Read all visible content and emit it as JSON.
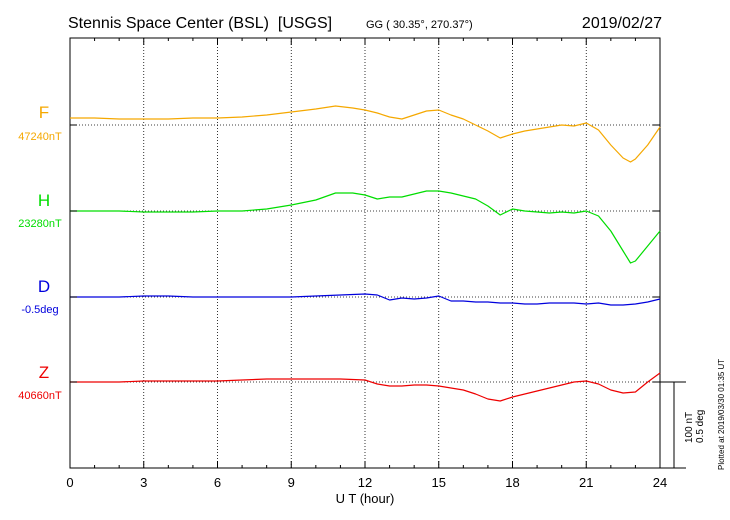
{
  "header": {
    "station": "Stennis Space Center (BSL)  [USGS]",
    "coords": "GG ( 30.35°, 270.37°)",
    "date": "2019/02/27"
  },
  "side_note": "Plotted at 2019/03/30 01:35 UT",
  "scale_bar": {
    "line1": "100 nT",
    "line2": "0.5 deg"
  },
  "chart_data": {
    "type": "line",
    "xlabel": "U T (hour)",
    "xlim": [
      0,
      24
    ],
    "x_ticks": [
      "0",
      "3",
      "6",
      "9",
      "12",
      "15",
      "18",
      "21",
      "24"
    ],
    "grid": true,
    "series": [
      {
        "name": "F",
        "baseline_label": "47240nT",
        "color": "#f5a800",
        "x": [
          0,
          1,
          2,
          3,
          4,
          5,
          6,
          7,
          8,
          9,
          10,
          10.8,
          11.5,
          12,
          12.5,
          13,
          13.5,
          14,
          14.5,
          15,
          15.5,
          16,
          16.5,
          17,
          17.5,
          18,
          18.5,
          19,
          19.5,
          20,
          20.5,
          21,
          21.5,
          22,
          22.5,
          22.8,
          23,
          23.5,
          24
        ],
        "values": [
          7,
          7,
          6,
          6,
          6,
          7,
          7,
          8,
          10,
          13,
          16,
          19,
          17,
          15,
          12,
          8,
          6,
          10,
          14,
          15,
          10,
          6,
          0,
          -6,
          -13,
          -9,
          -6,
          -4,
          -2,
          0,
          -1,
          2,
          -5,
          -20,
          -33,
          -37,
          -34,
          -20,
          -2
        ]
      },
      {
        "name": "H",
        "baseline_label": "23280nT",
        "color": "#00dd00",
        "x": [
          0,
          1,
          2,
          3,
          4,
          5,
          6,
          7,
          8,
          9,
          10,
          10.8,
          11.5,
          12,
          12.5,
          13,
          13.5,
          14,
          14.5,
          15,
          15.5,
          16,
          16.5,
          17,
          17.5,
          18,
          18.5,
          19,
          19.5,
          20,
          20.5,
          21,
          21.5,
          22,
          22.5,
          22.8,
          23,
          23.5,
          24
        ],
        "values": [
          0,
          0,
          0,
          -1,
          -1,
          -1,
          0,
          0,
          2,
          6,
          11,
          18,
          18,
          16,
          12,
          14,
          14,
          17,
          20,
          20,
          18,
          15,
          12,
          5,
          -4,
          2,
          0,
          -1,
          -2,
          -1,
          -2,
          0,
          -5,
          -20,
          -40,
          -52,
          -50,
          -35,
          -20
        ]
      },
      {
        "name": "D",
        "baseline_label": "-0.5deg",
        "color": "#0000dd",
        "x": [
          0,
          1,
          2,
          3,
          4,
          5,
          6,
          7,
          8,
          9,
          10,
          11,
          12,
          12.5,
          13,
          13.5,
          14,
          14.5,
          15,
          15.5,
          16,
          16.5,
          17,
          17.5,
          18,
          18.5,
          19,
          19.5,
          20,
          20.5,
          21,
          21.5,
          22,
          22.5,
          23,
          23.5,
          24
        ],
        "values": [
          0,
          0,
          0,
          1,
          1,
          0,
          0,
          0,
          0,
          0,
          1,
          2,
          3,
          2,
          -3,
          -1,
          -2,
          -1,
          1,
          -4,
          -4,
          -5,
          -5,
          -6,
          -6,
          -7,
          -7,
          -6,
          -6,
          -6,
          -7,
          -6,
          -8,
          -8,
          -7,
          -5,
          -2
        ]
      },
      {
        "name": "Z",
        "baseline_label": "40660nT",
        "color": "#ee0000",
        "x": [
          0,
          1,
          2,
          3,
          4,
          5,
          6,
          7,
          8,
          9,
          10,
          11,
          12,
          12.5,
          13,
          13.5,
          14,
          14.5,
          15,
          15.5,
          16,
          16.5,
          17,
          17.5,
          18,
          18.5,
          19,
          19.5,
          20,
          20.5,
          21,
          21.5,
          22,
          22.5,
          23,
          23.5,
          24
        ],
        "values": [
          0,
          0,
          0,
          1,
          1,
          1,
          1,
          2,
          3,
          3,
          3,
          3,
          2,
          -2,
          -4,
          -4,
          -3,
          -3,
          -4,
          -6,
          -8,
          -12,
          -17,
          -19,
          -15,
          -12,
          -9,
          -6,
          -3,
          0,
          1,
          -2,
          -8,
          -11,
          -10,
          0,
          9
        ]
      }
    ]
  }
}
